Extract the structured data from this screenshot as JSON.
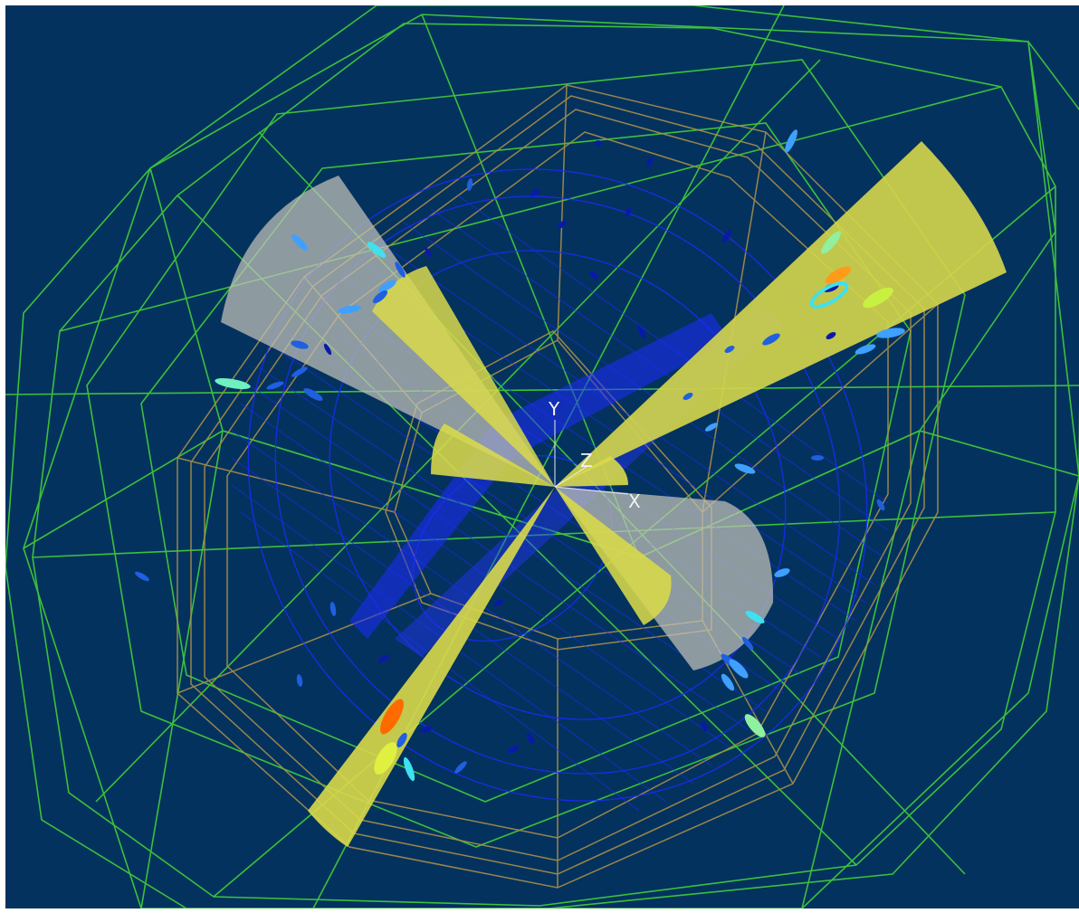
{
  "viewer": {
    "axes": {
      "y_label": "Y",
      "z_label": "Z",
      "x_label": "X"
    },
    "colors": {
      "background": "#04325e",
      "outer_detector_wireframe": "#3ec83a",
      "calorimeter_wireframe": "#a8904a",
      "inner_tracker": "#1a2cff",
      "cone_yellow": "#d9d94a",
      "cone_grey": "#b8b8b0",
      "cluster_palette": [
        "#0a1aa8",
        "#1f5fe0",
        "#3fa0ff",
        "#3fe0f0",
        "#8ff0a0",
        "#e0f040",
        "#ff9a1a",
        "#ff6a00"
      ]
    },
    "jet_cones": [
      {
        "name": "upper-right-jet",
        "color": "yellow"
      },
      {
        "name": "lower-left-jet",
        "color": "yellow"
      },
      {
        "name": "upper-left-jet",
        "color": "grey-yellow"
      },
      {
        "name": "lower-right-jet",
        "color": "grey-yellow"
      },
      {
        "name": "left-small-jet",
        "color": "yellow"
      },
      {
        "name": "right-small-jet",
        "color": "yellow"
      }
    ]
  }
}
